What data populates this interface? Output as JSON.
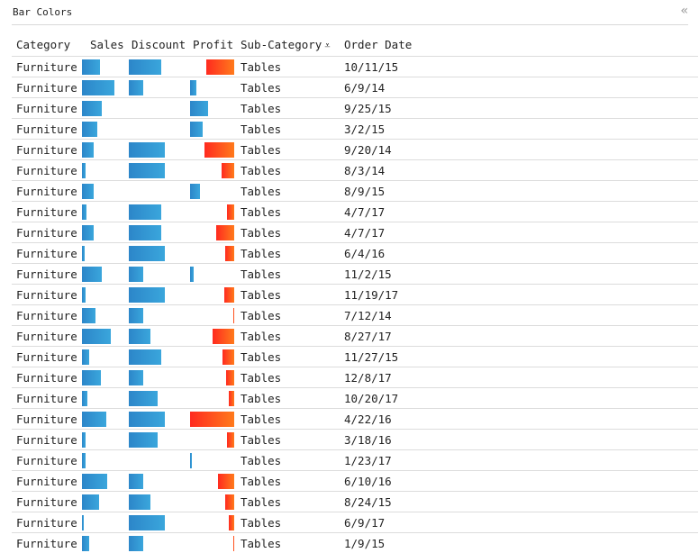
{
  "panel": {
    "title": "Bar Colors",
    "collapse_icon": "«"
  },
  "colors": {
    "positive_bar": "#2e8ad0",
    "negative_bar_start": "#ff2a1f",
    "negative_bar_end": "#ff7a1c",
    "row_rule": "#dcdcdc"
  },
  "table": {
    "columns": {
      "category": "Category",
      "sales": "Sales",
      "discount": "Discount",
      "profit": "Profit",
      "subcategory": "Sub-Category",
      "subcategory_sort_icon": "⩡",
      "order_date": "Order Date"
    },
    "rows": [
      {
        "category": "Furniture",
        "sales": 0.38,
        "discount": 0.72,
        "profit": -0.64,
        "subcategory": "Tables",
        "order_date": "10/11/15"
      },
      {
        "category": "Furniture",
        "sales": 0.69,
        "discount": 0.32,
        "profit": 0.14,
        "subcategory": "Tables",
        "order_date": "6/9/14"
      },
      {
        "category": "Furniture",
        "sales": 0.42,
        "discount": 0,
        "profit": 0.4,
        "subcategory": "Tables",
        "order_date": "9/25/15"
      },
      {
        "category": "Furniture",
        "sales": 0.32,
        "discount": 0,
        "profit": 0.28,
        "subcategory": "Tables",
        "order_date": "3/2/15"
      },
      {
        "category": "Furniture",
        "sales": 0.25,
        "discount": 0.8,
        "profit": -0.68,
        "subcategory": "Tables",
        "order_date": "9/20/14"
      },
      {
        "category": "Furniture",
        "sales": 0.08,
        "discount": 0.8,
        "profit": -0.28,
        "subcategory": "Tables",
        "order_date": "8/3/14"
      },
      {
        "category": "Furniture",
        "sales": 0.25,
        "discount": 0,
        "profit": 0.22,
        "subcategory": "Tables",
        "order_date": "8/9/15"
      },
      {
        "category": "Furniture",
        "sales": 0.09,
        "discount": 0.72,
        "profit": -0.17,
        "subcategory": "Tables",
        "order_date": "4/7/17"
      },
      {
        "category": "Furniture",
        "sales": 0.25,
        "discount": 0.72,
        "profit": -0.4,
        "subcategory": "Tables",
        "order_date": "4/7/17"
      },
      {
        "category": "Furniture",
        "sales": 0.06,
        "discount": 0.8,
        "profit": -0.2,
        "subcategory": "Tables",
        "order_date": "6/4/16"
      },
      {
        "category": "Furniture",
        "sales": 0.42,
        "discount": 0.32,
        "profit": 0.08,
        "subcategory": "Tables",
        "order_date": "11/2/15"
      },
      {
        "category": "Furniture",
        "sales": 0.08,
        "discount": 0.8,
        "profit": -0.22,
        "subcategory": "Tables",
        "order_date": "11/19/17"
      },
      {
        "category": "Furniture",
        "sales": 0.29,
        "discount": 0.32,
        "profit": -0.03,
        "subcategory": "Tables",
        "order_date": "7/12/14"
      },
      {
        "category": "Furniture",
        "sales": 0.62,
        "discount": 0.48,
        "profit": -0.48,
        "subcategory": "Tables",
        "order_date": "8/27/17"
      },
      {
        "category": "Furniture",
        "sales": 0.15,
        "discount": 0.72,
        "profit": -0.26,
        "subcategory": "Tables",
        "order_date": "11/27/15"
      },
      {
        "category": "Furniture",
        "sales": 0.4,
        "discount": 0.32,
        "profit": -0.18,
        "subcategory": "Tables",
        "order_date": "12/8/17"
      },
      {
        "category": "Furniture",
        "sales": 0.12,
        "discount": 0.64,
        "profit": -0.12,
        "subcategory": "Tables",
        "order_date": "10/20/17"
      },
      {
        "category": "Furniture",
        "sales": 0.52,
        "discount": 0.8,
        "profit": -1.0,
        "subcategory": "Tables",
        "order_date": "4/22/16"
      },
      {
        "category": "Furniture",
        "sales": 0.08,
        "discount": 0.64,
        "profit": -0.16,
        "subcategory": "Tables",
        "order_date": "3/18/16"
      },
      {
        "category": "Furniture",
        "sales": 0.08,
        "discount": 0,
        "profit": 0.04,
        "subcategory": "Tables",
        "order_date": "1/23/17"
      },
      {
        "category": "Furniture",
        "sales": 0.54,
        "discount": 0.32,
        "profit": -0.37,
        "subcategory": "Tables",
        "order_date": "6/10/16"
      },
      {
        "category": "Furniture",
        "sales": 0.36,
        "discount": 0.48,
        "profit": -0.2,
        "subcategory": "Tables",
        "order_date": "8/24/15"
      },
      {
        "category": "Furniture",
        "sales": 0.04,
        "discount": 0.8,
        "profit": -0.12,
        "subcategory": "Tables",
        "order_date": "6/9/17"
      },
      {
        "category": "Furniture",
        "sales": 0.15,
        "discount": 0.32,
        "profit": -0.02,
        "subcategory": "Tables",
        "order_date": "1/9/15"
      }
    ]
  }
}
